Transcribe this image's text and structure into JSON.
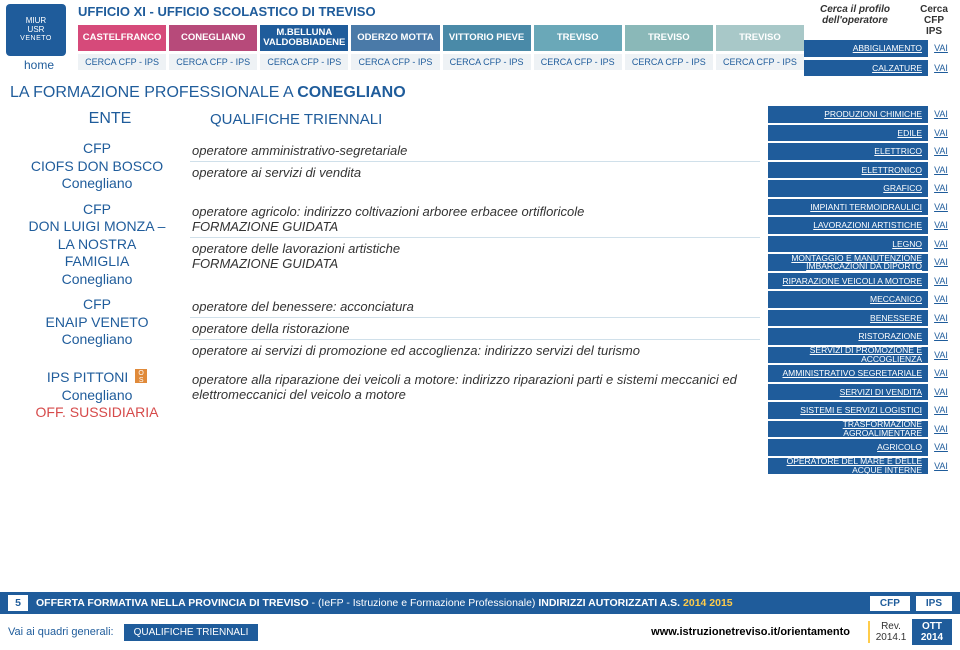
{
  "logo": {
    "line1": "MIUR",
    "line2": "USR",
    "line3": "VENETO"
  },
  "home": "home",
  "office_title": "UFFICIO XI - UFFICIO SCOLASTICO DI TREVISO",
  "tabs": [
    "CASTELFRANCO",
    "CONEGLIANO",
    "M.BELLUNA VALDOBBIADENE",
    "ODERZO MOTTA",
    "VITTORIO  PIEVE",
    "TREVISO",
    "TREVISO",
    "TREVISO"
  ],
  "sub_tabs": [
    "CERCA CFP - IPS",
    "CERCA CFP - IPS",
    "CERCA CFP - IPS",
    "CERCA CFP - IPS",
    "CERCA CFP - IPS",
    "CERCA CFP - IPS",
    "CERCA CFP - IPS",
    "CERCA CFP - IPS"
  ],
  "cerca": {
    "profilo_line1": "Cerca il profilo",
    "profilo_line2": "dell'operatore",
    "cfp_line1": "Cerca",
    "cfp_line2": "CFP",
    "cfp_line3": "IPS"
  },
  "section_title_pre": "LA FORMAZIONE PROFESSIONALE A ",
  "section_title_bold": "CONEGLIANO",
  "ente": "ENTE",
  "qualifiche": "QUALIFICHE TRIENNALI",
  "blocks": [
    {
      "ente": "CFP\nCIOFS DON BOSCO\nConegliano",
      "quali": [
        "operatore amministrativo-segretariale",
        "operatore ai servizi di vendita"
      ]
    },
    {
      "ente": "CFP\nDON LUIGI MONZA –\nLA NOSTRA\nFAMIGLIA\nConegliano",
      "quali": [
        "operatore agricolo: indirizzo coltivazioni arboree erbacee ortifloricole\nFORMAZIONE GUIDATA",
        "operatore delle lavorazioni artistiche\nFORMAZIONE GUIDATA"
      ]
    },
    {
      "ente": "CFP\nENAIP VENETO\nConegliano",
      "quali": [
        "operatore del benessere: acconciatura",
        "operatore della ristorazione",
        "operatore ai servizi di promozione ed accoglienza: indirizzo servizi del turismo"
      ]
    },
    {
      "ente": "IPS PITTONI\nConegliano",
      "suffix": "OFF. SUSSIDIARIA",
      "os": true,
      "quali": [
        "operatore alla riparazione dei veicoli a motore: indirizzo riparazioni parti e sistemi meccanici ed elettromeccanici del veicolo a motore"
      ]
    }
  ],
  "side": [
    "ABBIGLIAMENTO",
    "CALZATURE",
    "PRODUZIONI CHIMICHE",
    "EDILE",
    "ELETTRICO",
    "ELETTRONICO",
    "GRAFICO",
    "IMPIANTI TERMOIDRAULICI",
    "LAVORAZIONI ARTISTICHE",
    "LEGNO",
    "MONTAGGIO E MANUTENZIONE IMBARCAZIONI DA DIPORTO",
    "RIPARAZIONE VEICOLI A MOTORE",
    "MECCANICO",
    "BENESSERE",
    "RISTORAZIONE",
    "SERVIZI DI PROMOZIONE E ACCOGLIENZA",
    "AMMINISTRATIVO SEGRETARIALE",
    "SERVIZI DI VENDITA",
    "SISTEMI E SERVIZI LOGISTICI",
    "TRASFORMAZIONE AGROALIMENTARE",
    "AGRICOLO",
    "OPERATORE DEL MARE E DELLE ACQUE INTERNE"
  ],
  "vai": "VAI",
  "footer": {
    "page": "5",
    "main_pre": "OFFERTA FORMATIVA NELLA PROVINCIA DI TREVISO",
    "main_mid": " - (IeFP - Istruzione e Formazione Professionale) ",
    "main_bold2": "INDIRIZZI AUTORIZZATI A.S. ",
    "year": "2014 2015",
    "btn1": "CFP",
    "btn2": "IPS",
    "sub_label": "Vai ai quadri generali:",
    "sub_btn": "QUALIFICHE TRIENNALI",
    "url": "www.istruzionetreviso.it/orientamento",
    "rev_l1": "Rev.",
    "rev_l2": "2014.1",
    "ott_l1": "OTT",
    "ott_l2": "2014"
  }
}
